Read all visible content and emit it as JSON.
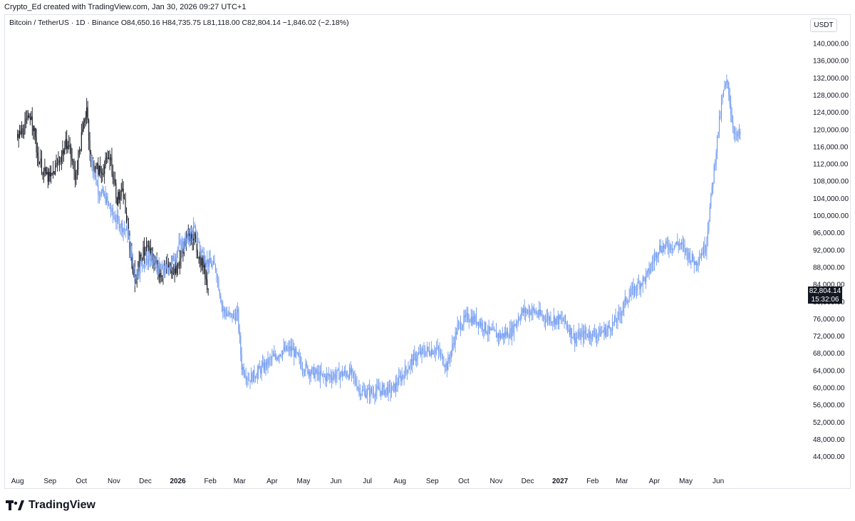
{
  "header": {
    "attribution": "Crypto_Ed created with TradingView.com, Jan 30, 2026 09:27 UTC+1"
  },
  "legend": {
    "symbol": "Bitcoin / TetherUS · 1D · Binance",
    "open": "O84,650.16",
    "high": "H84,735.75",
    "low": "L81,118.00",
    "close": "C82,804.14",
    "change": "−1,846.02 (−2.18%)"
  },
  "currency_button": "USDT",
  "last_price": {
    "value": "82,804.14",
    "countdown": "15:32:06"
  },
  "footer": {
    "brand": "TradingView"
  },
  "colors": {
    "history_candles": "#131722",
    "projection_candles": "#6e98f0",
    "badge": "#131722"
  },
  "chart_data": {
    "type": "candlestick",
    "yaxis": {
      "ticks": [
        "140,000.00",
        "136,000.00",
        "132,000.00",
        "128,000.00",
        "124,000.00",
        "120,000.00",
        "116,000.00",
        "112,000.00",
        "108,000.00",
        "104,000.00",
        "100,000.00",
        "96,000.00",
        "92,000.00",
        "88,000.00",
        "84,000.00",
        "80,000.00",
        "76,000.00",
        "72,000.00",
        "68,000.00",
        "64,000.00",
        "60,000.00",
        "56,000.00",
        "52,000.00",
        "48,000.00",
        "44,000.00"
      ],
      "tick_values": [
        140000,
        136000,
        132000,
        128000,
        124000,
        120000,
        116000,
        112000,
        108000,
        104000,
        100000,
        96000,
        92000,
        88000,
        84000,
        80000,
        76000,
        72000,
        68000,
        64000,
        60000,
        56000,
        52000,
        48000,
        44000
      ]
    },
    "xaxis": {
      "ticks": [
        {
          "label": "Aug",
          "bold": false
        },
        {
          "label": "Sep",
          "bold": false
        },
        {
          "label": "Oct",
          "bold": false
        },
        {
          "label": "Nov",
          "bold": false
        },
        {
          "label": "Dec",
          "bold": false
        },
        {
          "label": "2026",
          "bold": true
        },
        {
          "label": "Feb",
          "bold": false
        },
        {
          "label": "Mar",
          "bold": false
        },
        {
          "label": "Apr",
          "bold": false
        },
        {
          "label": "May",
          "bold": false
        },
        {
          "label": "Jun",
          "bold": false
        },
        {
          "label": "Jul",
          "bold": false
        },
        {
          "label": "Aug",
          "bold": false
        },
        {
          "label": "Sep",
          "bold": false
        },
        {
          "label": "Oct",
          "bold": false
        },
        {
          "label": "Nov",
          "bold": false
        },
        {
          "label": "Dec",
          "bold": false
        },
        {
          "label": "2027",
          "bold": true
        },
        {
          "label": "Feb",
          "bold": false
        },
        {
          "label": "Mar",
          "bold": false
        },
        {
          "label": "Apr",
          "bold": false
        },
        {
          "label": "May",
          "bold": false
        },
        {
          "label": "Jun",
          "bold": false
        }
      ]
    },
    "series": [
      {
        "kind": "history",
        "color": "#131722",
        "start": "2025-08-01",
        "path": [
          [
            "2025-08-01",
            118000
          ],
          [
            "2025-08-10",
            121500
          ],
          [
            "2025-08-14",
            124000
          ],
          [
            "2025-08-20",
            114000
          ],
          [
            "2025-08-26",
            110000
          ],
          [
            "2025-09-01",
            108500
          ],
          [
            "2025-09-10",
            113000
          ],
          [
            "2025-09-18",
            117500
          ],
          [
            "2025-09-25",
            109000
          ],
          [
            "2025-10-01",
            118000
          ],
          [
            "2025-10-06",
            125500
          ],
          [
            "2025-10-10",
            112000
          ],
          [
            "2025-10-15",
            111000
          ],
          [
            "2025-10-20",
            110000
          ],
          [
            "2025-10-28",
            114000
          ],
          [
            "2025-11-04",
            104000
          ],
          [
            "2025-11-10",
            105000
          ],
          [
            "2025-11-15",
            95000
          ],
          [
            "2025-11-21",
            84500
          ],
          [
            "2025-11-27",
            91000
          ],
          [
            "2025-12-03",
            92500
          ],
          [
            "2025-12-08",
            90000
          ],
          [
            "2025-12-15",
            86500
          ],
          [
            "2025-12-22",
            88000
          ],
          [
            "2025-12-31",
            87500
          ],
          [
            "2026-01-06",
            92500
          ],
          [
            "2026-01-14",
            96500
          ],
          [
            "2026-01-20",
            91500
          ],
          [
            "2026-01-26",
            88000
          ],
          [
            "2026-01-30",
            82800
          ]
        ]
      },
      {
        "kind": "projection",
        "color": "#6e98f0",
        "path": [
          [
            "2025-10-10",
            113000
          ],
          [
            "2025-10-17",
            106000
          ],
          [
            "2025-10-24",
            104000
          ],
          [
            "2025-10-31",
            100000
          ],
          [
            "2025-11-07",
            98000
          ],
          [
            "2025-11-14",
            96000
          ],
          [
            "2025-11-21",
            86000
          ],
          [
            "2025-11-28",
            89000
          ],
          [
            "2025-12-05",
            90000
          ],
          [
            "2025-12-12",
            88000
          ],
          [
            "2025-12-19",
            87000
          ],
          [
            "2025-12-26",
            89000
          ],
          [
            "2026-01-02",
            93000
          ],
          [
            "2026-01-09",
            94000
          ],
          [
            "2026-01-16",
            97000
          ],
          [
            "2026-01-23",
            92000
          ],
          [
            "2026-01-30",
            89000
          ],
          [
            "2026-02-06",
            88000
          ],
          [
            "2026-02-13",
            78000
          ],
          [
            "2026-02-20",
            76500
          ],
          [
            "2026-02-27",
            77000
          ],
          [
            "2026-03-03",
            65000
          ],
          [
            "2026-03-10",
            62000
          ],
          [
            "2026-03-20",
            64000
          ],
          [
            "2026-03-31",
            66500
          ],
          [
            "2026-04-10",
            68500
          ],
          [
            "2026-04-20",
            69000
          ],
          [
            "2026-04-30",
            65000
          ],
          [
            "2026-05-10",
            63500
          ],
          [
            "2026-05-20",
            62500
          ],
          [
            "2026-06-01",
            63000
          ],
          [
            "2026-06-15",
            63500
          ],
          [
            "2026-06-25",
            59000
          ],
          [
            "2026-07-05",
            59000
          ],
          [
            "2026-07-15",
            59500
          ],
          [
            "2026-07-25",
            59500
          ],
          [
            "2026-08-05",
            63500
          ],
          [
            "2026-08-15",
            67000
          ],
          [
            "2026-08-25",
            68500
          ],
          [
            "2026-09-05",
            69000
          ],
          [
            "2026-09-15",
            65000
          ],
          [
            "2026-09-25",
            74000
          ],
          [
            "2026-10-05",
            76500
          ],
          [
            "2026-10-15",
            75500
          ],
          [
            "2026-10-25",
            73000
          ],
          [
            "2026-11-05",
            72000
          ],
          [
            "2026-11-15",
            73000
          ],
          [
            "2026-11-25",
            77500
          ],
          [
            "2026-12-05",
            78000
          ],
          [
            "2026-12-15",
            76500
          ],
          [
            "2026-12-25",
            76000
          ],
          [
            "2027-01-05",
            75500
          ],
          [
            "2027-01-15",
            71500
          ],
          [
            "2027-01-25",
            72500
          ],
          [
            "2027-02-05",
            72500
          ],
          [
            "2027-02-15",
            73500
          ],
          [
            "2027-02-25",
            76000
          ],
          [
            "2027-03-05",
            80500
          ],
          [
            "2027-03-15",
            83500
          ],
          [
            "2027-03-25",
            86000
          ],
          [
            "2027-04-05",
            92500
          ],
          [
            "2027-04-15",
            93000
          ],
          [
            "2027-04-25",
            93500
          ],
          [
            "2027-05-05",
            90500
          ],
          [
            "2027-05-10",
            89000
          ],
          [
            "2027-05-20",
            93000
          ],
          [
            "2027-05-25",
            104000
          ],
          [
            "2027-06-01",
            120000
          ],
          [
            "2027-06-06",
            129000
          ],
          [
            "2027-06-10",
            131000
          ],
          [
            "2027-06-14",
            122000
          ],
          [
            "2027-06-18",
            118000
          ],
          [
            "2027-06-22",
            119000
          ]
        ]
      }
    ],
    "last_price": 82804.14
  }
}
